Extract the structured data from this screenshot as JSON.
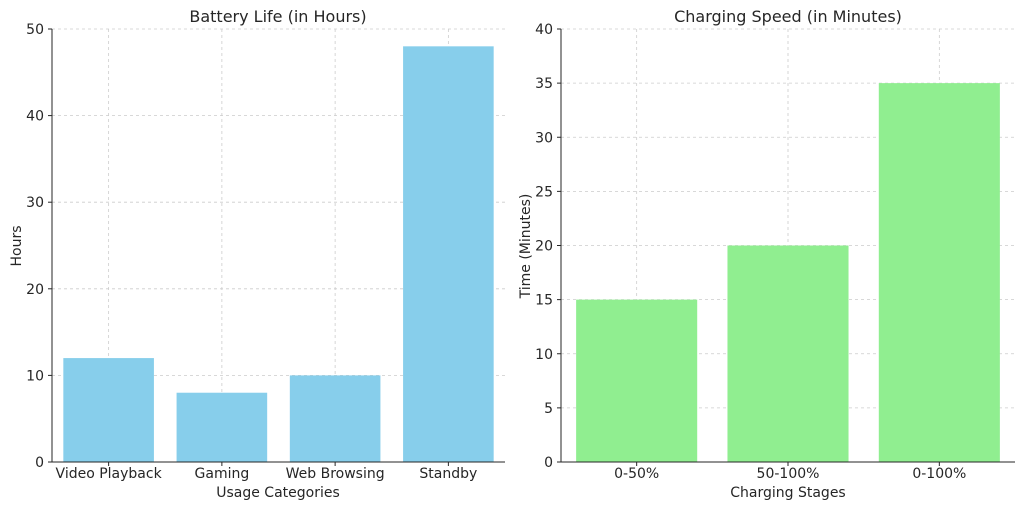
{
  "chart_data": [
    {
      "type": "bar",
      "title": "Battery Life (in Hours)",
      "xlabel": "Usage Categories",
      "ylabel": "Hours",
      "categories": [
        "Video Playback",
        "Gaming",
        "Web Browsing",
        "Standby"
      ],
      "values": [
        12,
        8,
        10,
        48
      ],
      "ylim": [
        0,
        50
      ],
      "yticks": [
        0,
        10,
        20,
        30,
        40,
        50
      ],
      "grid": true,
      "color": "#87CEEB"
    },
    {
      "type": "bar",
      "title": "Charging Speed (in Minutes)",
      "xlabel": "Charging Stages",
      "ylabel": "Time (Minutes)",
      "categories": [
        "0-50%",
        "50-100%",
        "0-100%"
      ],
      "values": [
        15,
        20,
        35
      ],
      "ylim": [
        0,
        40
      ],
      "yticks": [
        0,
        5,
        10,
        15,
        20,
        25,
        30,
        35,
        40
      ],
      "grid": true,
      "color": "#90EE90"
    }
  ]
}
